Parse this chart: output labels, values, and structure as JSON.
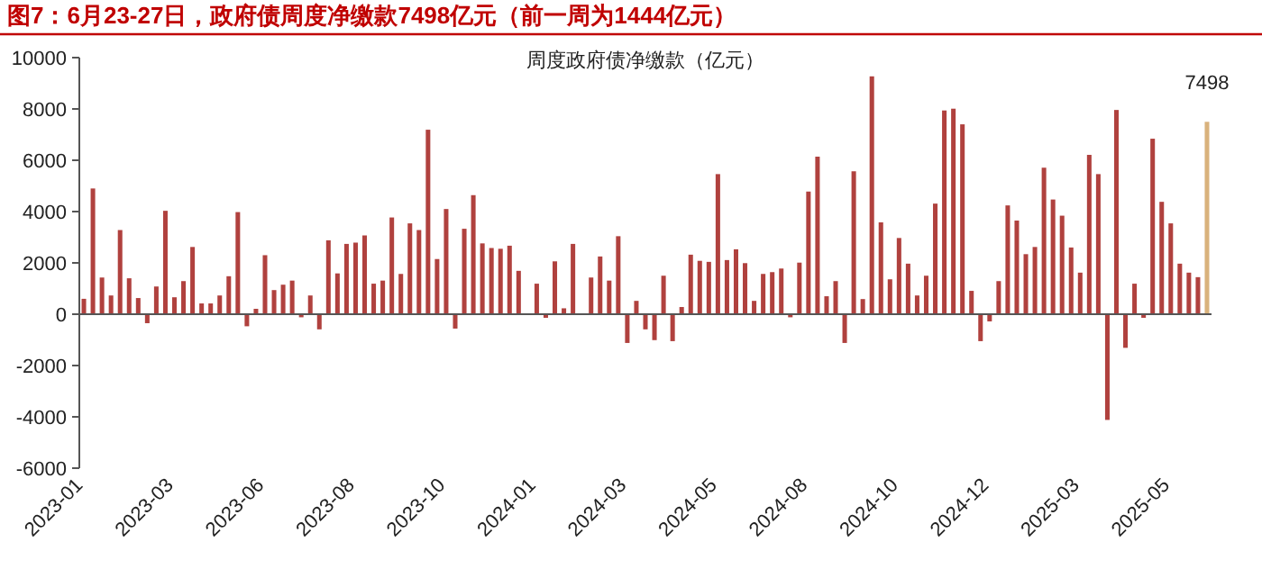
{
  "chart_data": {
    "type": "bar",
    "title": "图7：6月23-27日，政府债周度净缴款7498亿元（前一周为1444亿元）",
    "subtitle": "周度政府债净缴款（亿元）",
    "categories": [
      "2023-01",
      null,
      null,
      null,
      null,
      null,
      null,
      null,
      null,
      null,
      "2023-03",
      null,
      null,
      null,
      null,
      null,
      null,
      null,
      null,
      null,
      "2023-06",
      null,
      null,
      null,
      null,
      null,
      null,
      null,
      null,
      null,
      "2023-08",
      null,
      null,
      null,
      null,
      null,
      null,
      null,
      null,
      null,
      "2023-10",
      null,
      null,
      null,
      null,
      null,
      null,
      null,
      null,
      null,
      "2024-01",
      null,
      null,
      null,
      null,
      null,
      null,
      null,
      null,
      null,
      "2024-03",
      null,
      null,
      null,
      null,
      null,
      null,
      null,
      null,
      null,
      "2024-05",
      null,
      null,
      null,
      null,
      null,
      null,
      null,
      null,
      null,
      "2024-08",
      null,
      null,
      null,
      null,
      null,
      null,
      null,
      null,
      null,
      "2024-10",
      null,
      null,
      null,
      null,
      null,
      null,
      null,
      null,
      null,
      "2024-12",
      null,
      null,
      null,
      null,
      null,
      null,
      null,
      null,
      null,
      "2025-03",
      null,
      null,
      null,
      null,
      null,
      null,
      null,
      null,
      null,
      "2025-05",
      null,
      null,
      null,
      null
    ],
    "values": [
      600,
      4900,
      1430,
      730,
      3280,
      1400,
      630,
      -350,
      1080,
      4030,
      660,
      1290,
      2620,
      420,
      420,
      730,
      1480,
      3980,
      -470,
      210,
      2300,
      940,
      1150,
      1310,
      -120,
      730,
      -590,
      2880,
      1590,
      2740,
      2790,
      3070,
      1190,
      1310,
      3770,
      1570,
      3540,
      3280,
      7190,
      2150,
      4100,
      -560,
      3330,
      4640,
      2760,
      2580,
      2550,
      2670,
      1690,
      0,
      1190,
      -140,
      2060,
      230,
      2740,
      0,
      1430,
      2250,
      1310,
      3040,
      -1120,
      520,
      -590,
      -1010,
      1500,
      -1050,
      280,
      2320,
      2080,
      2040,
      5460,
      2110,
      2530,
      1990,
      520,
      1570,
      1640,
      1780,
      -120,
      2010,
      4780,
      6140,
      700,
      1290,
      -1120,
      5570,
      590,
      9270,
      3580,
      1360,
      2970,
      1970,
      730,
      1500,
      4310,
      7940,
      8010,
      7400,
      910,
      -1050,
      -280,
      1290,
      4240,
      3650,
      2340,
      2620,
      5710,
      4470,
      3840,
      2600,
      1620,
      6210,
      5460,
      -4120,
      7960,
      -1310,
      1190,
      -140,
      6840,
      4380,
      3540,
      1970,
      1620,
      1444,
      7498
    ],
    "colors": [
      "#b0413e",
      "#b0413e",
      "#b0413e",
      "#b0413e",
      "#b0413e",
      "#b0413e",
      "#b0413e",
      "#b0413e",
      "#b0413e",
      "#b0413e",
      "#b0413e",
      "#b0413e",
      "#b0413e",
      "#b0413e",
      "#b0413e",
      "#b0413e",
      "#b0413e",
      "#b0413e",
      "#b0413e",
      "#b0413e",
      "#b0413e",
      "#b0413e",
      "#b0413e",
      "#b0413e",
      "#b0413e",
      "#b0413e",
      "#b0413e",
      "#b0413e",
      "#b0413e",
      "#b0413e",
      "#b0413e",
      "#b0413e",
      "#b0413e",
      "#b0413e",
      "#b0413e",
      "#b0413e",
      "#b0413e",
      "#b0413e",
      "#b0413e",
      "#b0413e",
      "#b0413e",
      "#b0413e",
      "#b0413e",
      "#b0413e",
      "#b0413e",
      "#b0413e",
      "#b0413e",
      "#b0413e",
      "#b0413e",
      "#b0413e",
      "#b0413e",
      "#b0413e",
      "#b0413e",
      "#b0413e",
      "#b0413e",
      "#b0413e",
      "#b0413e",
      "#b0413e",
      "#b0413e",
      "#b0413e",
      "#b0413e",
      "#b0413e",
      "#b0413e",
      "#b0413e",
      "#b0413e",
      "#b0413e",
      "#b0413e",
      "#b0413e",
      "#b0413e",
      "#b0413e",
      "#b0413e",
      "#b0413e",
      "#b0413e",
      "#b0413e",
      "#b0413e",
      "#b0413e",
      "#b0413e",
      "#b0413e",
      "#b0413e",
      "#b0413e",
      "#b0413e",
      "#b0413e",
      "#b0413e",
      "#b0413e",
      "#b0413e",
      "#b0413e",
      "#b0413e",
      "#b0413e",
      "#b0413e",
      "#b0413e",
      "#b0413e",
      "#b0413e",
      "#b0413e",
      "#b0413e",
      "#b0413e",
      "#b0413e",
      "#b0413e",
      "#b0413e",
      "#b0413e",
      "#b0413e",
      "#b0413e",
      "#b0413e",
      "#b0413e",
      "#b0413e",
      "#b0413e",
      "#b0413e",
      "#b0413e",
      "#b0413e",
      "#b0413e",
      "#b0413e",
      "#b0413e",
      "#b0413e",
      "#b0413e",
      "#b0413e",
      "#b0413e",
      "#b0413e",
      "#b0413e",
      "#b0413e",
      "#b0413e",
      "#b0413e",
      "#b0413e",
      "#b0413e",
      "#b0413e",
      "#b0413e",
      "#d9b27c"
    ],
    "value_labels": [
      null,
      null,
      null,
      null,
      null,
      null,
      null,
      null,
      null,
      null,
      null,
      null,
      null,
      null,
      null,
      null,
      null,
      null,
      null,
      null,
      null,
      null,
      null,
      null,
      null,
      null,
      null,
      null,
      null,
      null,
      null,
      null,
      null,
      null,
      null,
      null,
      null,
      null,
      null,
      null,
      null,
      null,
      null,
      null,
      null,
      null,
      null,
      null,
      null,
      null,
      null,
      null,
      null,
      null,
      null,
      null,
      null,
      null,
      null,
      null,
      null,
      null,
      null,
      null,
      null,
      null,
      null,
      null,
      null,
      null,
      null,
      null,
      null,
      null,
      null,
      null,
      null,
      null,
      null,
      null,
      null,
      null,
      null,
      null,
      null,
      null,
      null,
      null,
      null,
      null,
      null,
      null,
      null,
      null,
      null,
      null,
      null,
      null,
      null,
      null,
      null,
      null,
      null,
      null,
      null,
      null,
      null,
      null,
      null,
      null,
      null,
      null,
      null,
      null,
      null,
      null,
      null,
      null,
      null,
      null,
      null,
      null,
      null,
      null,
      "7498"
    ],
    "ylim": [
      -6000,
      10000
    ],
    "yticks": [
      -6000,
      -4000,
      -2000,
      0,
      2000,
      4000,
      6000,
      8000,
      10000
    ]
  }
}
